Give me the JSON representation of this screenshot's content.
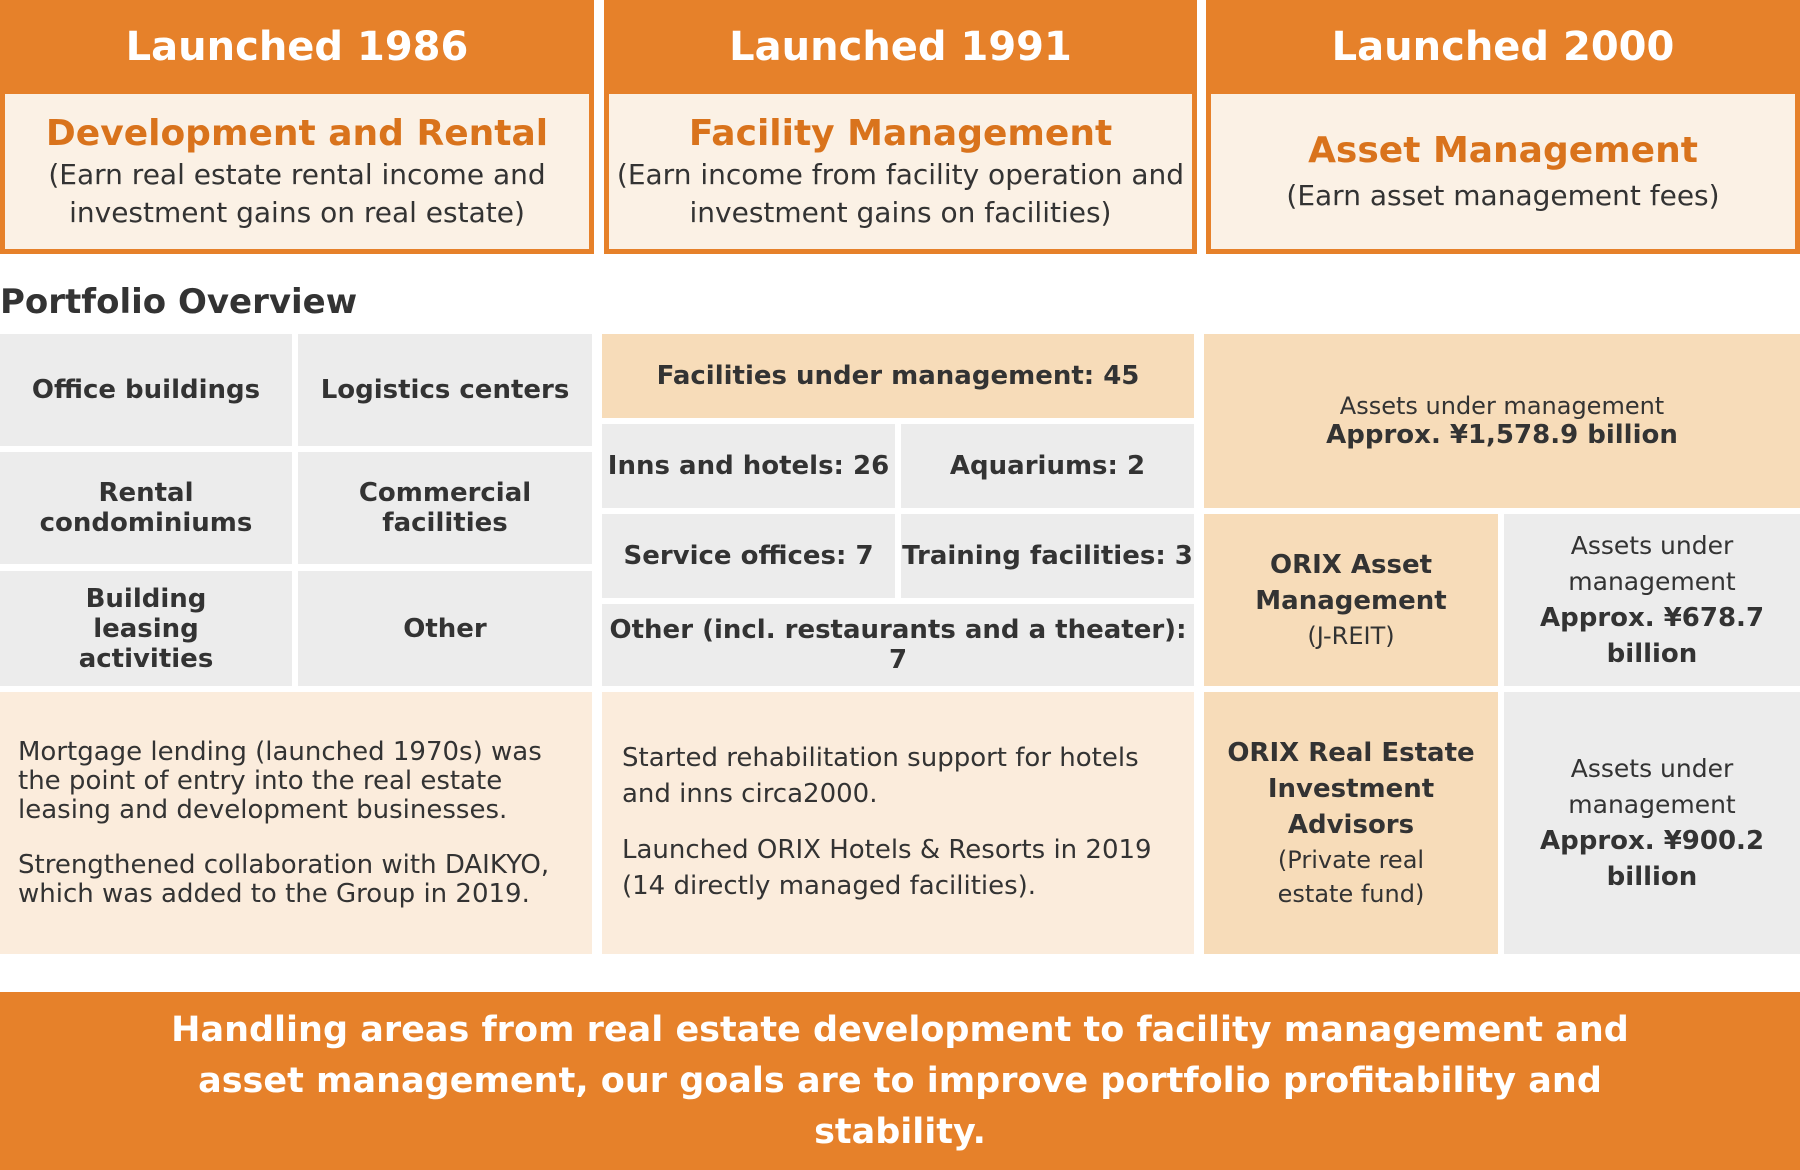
{
  "columns": [
    {
      "launch": "Launched 1986",
      "title": "Development and Rental",
      "desc_line1": "(Earn real estate rental income and",
      "desc_line2": "investment gains on real estate)"
    },
    {
      "launch": "Launched 1991",
      "title": "Facility Management",
      "desc_line1": "(Earn income from facility operation and",
      "desc_line2": "investment gains on facilities)"
    },
    {
      "launch": "Launched 2000",
      "title": "Asset Management",
      "desc_line1": "(Earn asset management fees)"
    }
  ],
  "portfolio_title": "Portfolio Overview",
  "development": {
    "cells": [
      "Office buildings",
      "Logistics centers",
      "Rental condominiums",
      "Commercial facilities",
      "Building leasing activities",
      "Other"
    ],
    "para1": "Mortgage lending (launched 1970s) was the point of entry into the real estate leasing and development businesses.",
    "para2": "Strengthened collaboration with DAIKYO, which was added to the Group in 2019."
  },
  "facility": {
    "header": "Facilities under management: 45",
    "cells": [
      "Inns and hotels: 26",
      "Aquariums: 2",
      "Service offices: 7",
      "Training facilities: 3"
    ],
    "other": "Other (incl. restaurants and a theater): 7",
    "para1": "Started rehabilitation support for hotels and inns circa2000.",
    "para2": "Launched ORIX Hotels & Resorts in 2019 (14 directly managed facilities)."
  },
  "asset": {
    "total_label": "Assets under management",
    "total_value": "Approx. ¥1,578.9 billion",
    "entities": [
      {
        "name": "ORIX Asset Management",
        "type": "(J-REIT)",
        "aum_label": "Assets under management",
        "aum_value": "Approx. ¥678.7 billion"
      },
      {
        "name": "ORIX Real Estate Investment Advisors",
        "type": "(Private real estate fund)",
        "aum_label": "Assets under management",
        "aum_value": "Approx. ¥900.2 billion"
      }
    ]
  },
  "footer": "Handling areas from real estate development to facility management and asset management, our goals are to improve portfolio profitability and stability.",
  "colors": {
    "accent": "#e6812a",
    "title_orange": "#d9731c",
    "cream": "#fbf1e5",
    "peach": "#f7dcb9",
    "light_peach": "#fbecdc",
    "gray": "#ececec"
  }
}
